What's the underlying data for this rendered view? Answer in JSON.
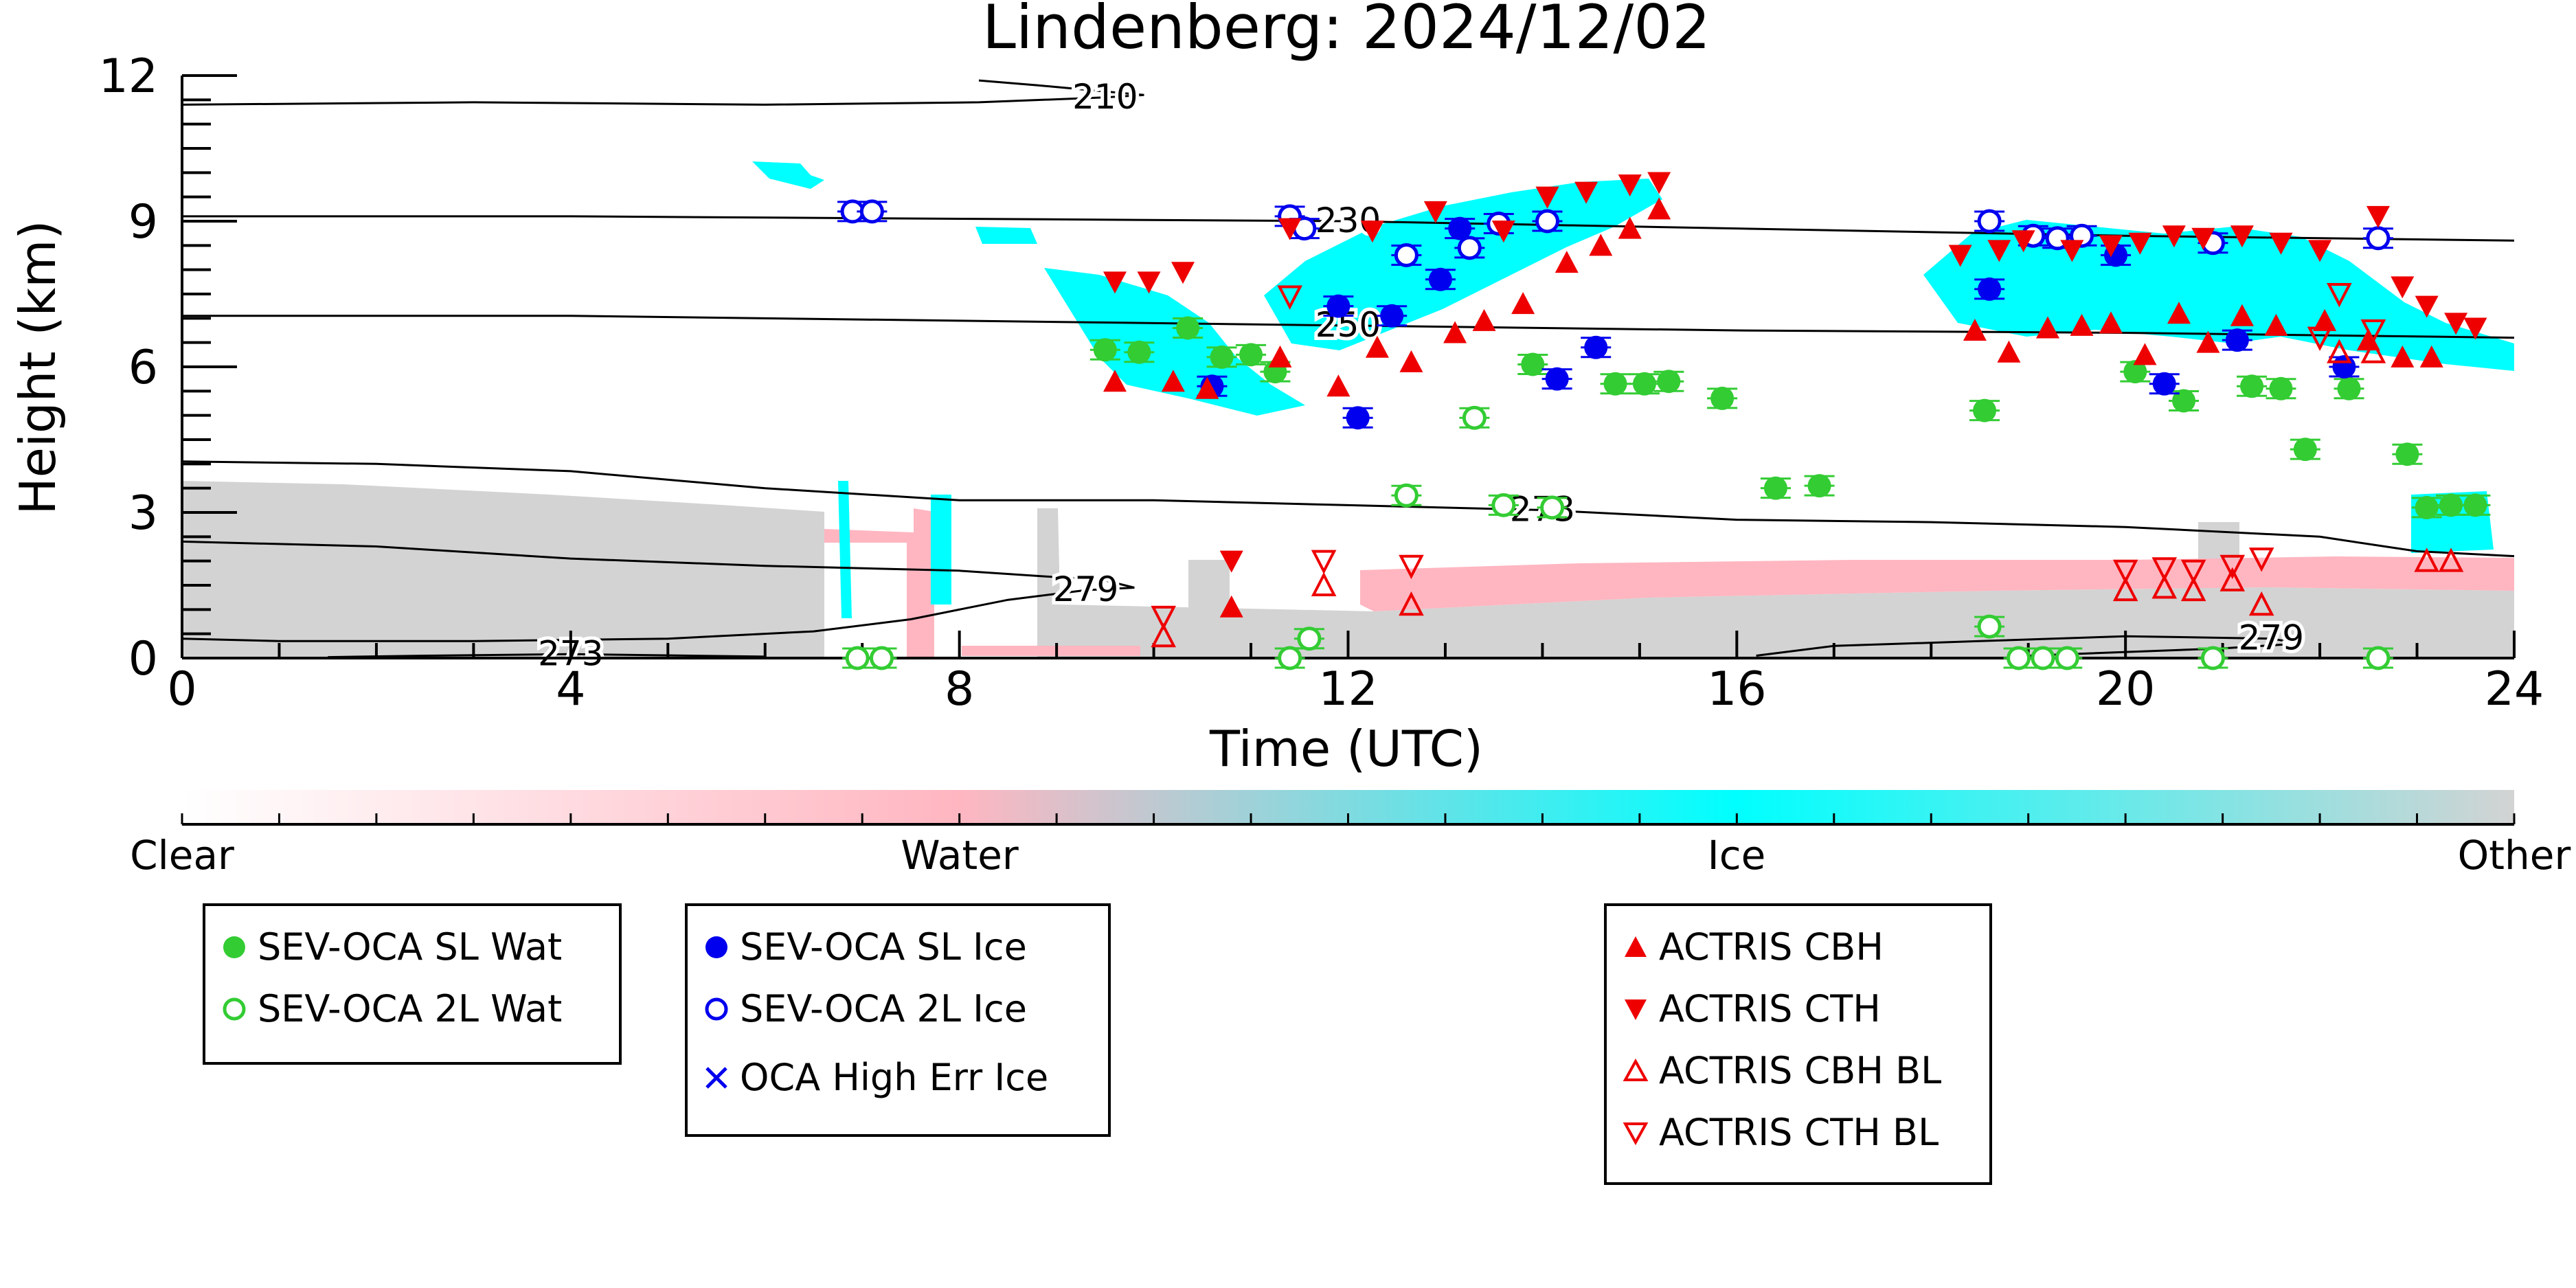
{
  "chart_data": {
    "type": "scatter",
    "title": "Lindenberg: 2024/12/02",
    "xlabel": "Time (UTC)",
    "ylabel": "Height (km)",
    "xlim": [
      0,
      24
    ],
    "ylim": [
      0,
      12
    ],
    "x_ticks": [
      0,
      4,
      8,
      12,
      16,
      20,
      24
    ],
    "y_ticks": [
      0,
      3,
      6,
      9,
      12
    ],
    "grid": false,
    "colorbar": {
      "labels": [
        "Clear",
        "Water",
        "Ice",
        "Other"
      ],
      "colors": [
        "#ffffff",
        "#ffb6c1",
        "#00ffff",
        "#d3d3d3"
      ]
    },
    "contours": [
      {
        "label": "210",
        "points": [
          [
            0,
            11.4
          ],
          [
            3,
            11.45
          ],
          [
            6,
            11.4
          ],
          [
            8.2,
            11.45
          ],
          [
            9.5,
            11.55
          ],
          [
            9.9,
            11.6
          ],
          [
            8.8,
            11.8
          ],
          [
            8.2,
            11.9
          ]
        ]
      },
      {
        "label": "230",
        "points": [
          [
            0,
            9.1
          ],
          [
            4,
            9.1
          ],
          [
            8,
            9.05
          ],
          [
            12,
            9.0
          ],
          [
            16,
            8.85
          ],
          [
            20,
            8.7
          ],
          [
            24,
            8.6
          ]
        ]
      },
      {
        "label": "250",
        "points": [
          [
            0,
            7.05
          ],
          [
            4,
            7.05
          ],
          [
            8,
            6.95
          ],
          [
            12,
            6.85
          ],
          [
            16,
            6.75
          ],
          [
            20,
            6.7
          ],
          [
            24,
            6.6
          ]
        ]
      },
      {
        "label": "273",
        "points": [
          [
            0,
            4.05
          ],
          [
            2,
            4.0
          ],
          [
            4,
            3.85
          ],
          [
            6,
            3.5
          ],
          [
            8,
            3.25
          ],
          [
            10,
            3.25
          ],
          [
            12,
            3.15
          ],
          [
            14,
            3.05
          ],
          [
            16,
            2.85
          ],
          [
            18,
            2.8
          ],
          [
            20,
            2.7
          ],
          [
            22,
            2.5
          ],
          [
            23,
            2.2
          ],
          [
            24,
            2.1
          ]
        ]
      },
      {
        "label": "279",
        "points": [
          [
            0,
            2.4
          ],
          [
            2,
            2.3
          ],
          [
            4,
            2.05
          ],
          [
            6,
            1.9
          ],
          [
            8,
            1.8
          ],
          [
            9.5,
            1.6
          ],
          [
            9.8,
            1.45
          ],
          [
            9.3,
            1.4
          ],
          [
            8.5,
            1.2
          ],
          [
            7.5,
            0.8
          ],
          [
            6.5,
            0.55
          ],
          [
            5,
            0.4
          ],
          [
            3,
            0.35
          ],
          [
            1,
            0.35
          ],
          [
            0,
            0.4
          ]
        ]
      },
      {
        "label": "273",
        "points": [
          [
            1.5,
            0.02
          ],
          [
            2.5,
            0.05
          ],
          [
            4,
            0.08
          ],
          [
            6,
            0.03
          ]
        ]
      },
      {
        "label": "279",
        "points": [
          [
            16.2,
            0.05
          ],
          [
            17,
            0.25
          ],
          [
            18.5,
            0.35
          ],
          [
            20,
            0.45
          ],
          [
            21.5,
            0.4
          ],
          [
            21.8,
            0.3
          ],
          [
            21,
            0.2
          ],
          [
            19,
            0.05
          ]
        ]
      }
    ],
    "series": [
      {
        "name": "SEV-OCA SL Wat",
        "marker": "filled-circle",
        "color": "#33cc33",
        "points": [
          [
            9.5,
            6.35
          ],
          [
            9.85,
            6.3
          ],
          [
            10.35,
            6.8
          ],
          [
            10.7,
            6.2
          ],
          [
            11.0,
            6.25
          ],
          [
            11.25,
            5.9
          ],
          [
            13.9,
            6.05
          ],
          [
            14.75,
            5.65
          ],
          [
            15.05,
            5.65
          ],
          [
            15.3,
            5.7
          ],
          [
            15.85,
            5.35
          ],
          [
            16.4,
            3.5
          ],
          [
            16.85,
            3.55
          ],
          [
            18.55,
            5.1
          ],
          [
            20.1,
            5.9
          ],
          [
            20.6,
            5.3
          ],
          [
            21.3,
            5.6
          ],
          [
            21.6,
            5.55
          ],
          [
            21.85,
            4.3
          ],
          [
            22.3,
            5.55
          ],
          [
            22.9,
            4.2
          ],
          [
            23.1,
            3.1
          ],
          [
            23.35,
            3.15
          ],
          [
            23.6,
            3.15
          ]
        ]
      },
      {
        "name": "SEV-OCA 2L Wat",
        "marker": "open-circle",
        "color": "#33cc33",
        "points": [
          [
            6.95,
            0.0
          ],
          [
            7.2,
            0.0
          ],
          [
            11.4,
            0.0
          ],
          [
            11.6,
            0.4
          ],
          [
            12.6,
            3.35
          ],
          [
            13.3,
            4.95
          ],
          [
            13.6,
            3.15
          ],
          [
            14.1,
            3.1
          ],
          [
            18.6,
            0.65
          ],
          [
            18.9,
            0.0
          ],
          [
            19.15,
            0.0
          ],
          [
            19.4,
            0.0
          ],
          [
            20.9,
            0.0
          ],
          [
            22.6,
            0.0
          ]
        ]
      },
      {
        "name": "SEV-OCA SL Ice",
        "marker": "filled-circle",
        "color": "#0000ee",
        "points": [
          [
            10.6,
            5.6
          ],
          [
            11.9,
            7.25
          ],
          [
            12.1,
            4.95
          ],
          [
            12.45,
            7.05
          ],
          [
            12.95,
            7.8
          ],
          [
            13.15,
            8.85
          ],
          [
            14.15,
            5.75
          ],
          [
            14.55,
            6.4
          ],
          [
            18.6,
            7.6
          ],
          [
            19.9,
            8.3
          ],
          [
            20.4,
            5.65
          ],
          [
            21.15,
            6.55
          ],
          [
            22.25,
            6.0
          ]
        ]
      },
      {
        "name": "SEV-OCA 2L Ice",
        "marker": "open-circle",
        "color": "#0000ee",
        "points": [
          [
            6.9,
            9.2
          ],
          [
            7.1,
            9.2
          ],
          [
            11.4,
            9.1
          ],
          [
            11.55,
            8.85
          ],
          [
            12.6,
            8.3
          ],
          [
            13.25,
            8.45
          ],
          [
            13.55,
            8.95
          ],
          [
            14.05,
            9.0
          ],
          [
            18.6,
            9.0
          ],
          [
            19.05,
            8.7
          ],
          [
            19.3,
            8.65
          ],
          [
            19.55,
            8.7
          ],
          [
            20.9,
            8.55
          ],
          [
            22.6,
            8.65
          ]
        ]
      },
      {
        "name": "OCA High Err Ice",
        "marker": "x",
        "color": "#0000ee",
        "points": []
      },
      {
        "name": "ACTRIS CBH",
        "marker": "filled-triangle-up",
        "color": "#ee0000",
        "points": [
          [
            9.6,
            5.7
          ],
          [
            10.2,
            5.7
          ],
          [
            10.55,
            5.55
          ],
          [
            10.8,
            1.05
          ],
          [
            11.3,
            6.2
          ],
          [
            11.9,
            5.6
          ],
          [
            12.3,
            6.4
          ],
          [
            12.65,
            6.1
          ],
          [
            13.1,
            6.7
          ],
          [
            13.4,
            6.95
          ],
          [
            13.8,
            7.3
          ],
          [
            14.25,
            8.15
          ],
          [
            14.6,
            8.5
          ],
          [
            14.9,
            8.85
          ],
          [
            15.2,
            9.25
          ],
          [
            18.45,
            6.75
          ],
          [
            18.8,
            6.3
          ],
          [
            19.2,
            6.8
          ],
          [
            19.55,
            6.85
          ],
          [
            19.85,
            6.9
          ],
          [
            20.2,
            6.25
          ],
          [
            20.55,
            7.1
          ],
          [
            20.85,
            6.5
          ],
          [
            21.2,
            7.05
          ],
          [
            21.55,
            6.85
          ],
          [
            22.05,
            6.95
          ],
          [
            22.5,
            6.55
          ],
          [
            22.85,
            6.2
          ],
          [
            23.15,
            6.2
          ]
        ]
      },
      {
        "name": "ACTRIS CTH",
        "marker": "filled-triangle-down",
        "color": "#ee0000",
        "points": [
          [
            9.6,
            7.75
          ],
          [
            9.95,
            7.75
          ],
          [
            10.3,
            7.95
          ],
          [
            10.8,
            2.0
          ],
          [
            11.4,
            8.85
          ],
          [
            12.25,
            8.8
          ],
          [
            12.9,
            9.2
          ],
          [
            13.6,
            8.8
          ],
          [
            14.05,
            9.5
          ],
          [
            14.45,
            9.6
          ],
          [
            14.9,
            9.75
          ],
          [
            15.2,
            9.8
          ],
          [
            18.3,
            8.3
          ],
          [
            18.7,
            8.4
          ],
          [
            18.95,
            8.6
          ],
          [
            19.45,
            8.4
          ],
          [
            19.85,
            8.5
          ],
          [
            20.15,
            8.55
          ],
          [
            20.5,
            8.7
          ],
          [
            20.8,
            8.65
          ],
          [
            21.2,
            8.7
          ],
          [
            21.6,
            8.55
          ],
          [
            22.0,
            8.4
          ],
          [
            22.6,
            9.1
          ],
          [
            22.85,
            7.65
          ],
          [
            23.1,
            7.25
          ],
          [
            23.4,
            6.9
          ],
          [
            23.6,
            6.8
          ]
        ]
      },
      {
        "name": "ACTRIS CBH BL",
        "marker": "open-triangle-up",
        "color": "#ee0000",
        "points": [
          [
            10.1,
            0.45
          ],
          [
            11.75,
            1.5
          ],
          [
            12.65,
            1.1
          ],
          [
            20.0,
            1.4
          ],
          [
            20.4,
            1.45
          ],
          [
            20.7,
            1.4
          ],
          [
            21.1,
            1.6
          ],
          [
            21.4,
            1.1
          ],
          [
            22.2,
            6.3
          ],
          [
            22.55,
            6.3
          ],
          [
            23.1,
            2.0
          ],
          [
            23.35,
            2.0
          ]
        ]
      },
      {
        "name": "ACTRIS CTH BL",
        "marker": "open-triangle-down",
        "color": "#ee0000",
        "points": [
          [
            10.1,
            0.85
          ],
          [
            11.4,
            7.45
          ],
          [
            11.75,
            2.0
          ],
          [
            12.65,
            1.9
          ],
          [
            20.0,
            1.8
          ],
          [
            20.4,
            1.85
          ],
          [
            20.7,
            1.8
          ],
          [
            21.1,
            1.9
          ],
          [
            21.4,
            2.05
          ],
          [
            22.0,
            6.6
          ],
          [
            22.2,
            7.5
          ],
          [
            22.55,
            6.75
          ]
        ]
      }
    ]
  }
}
